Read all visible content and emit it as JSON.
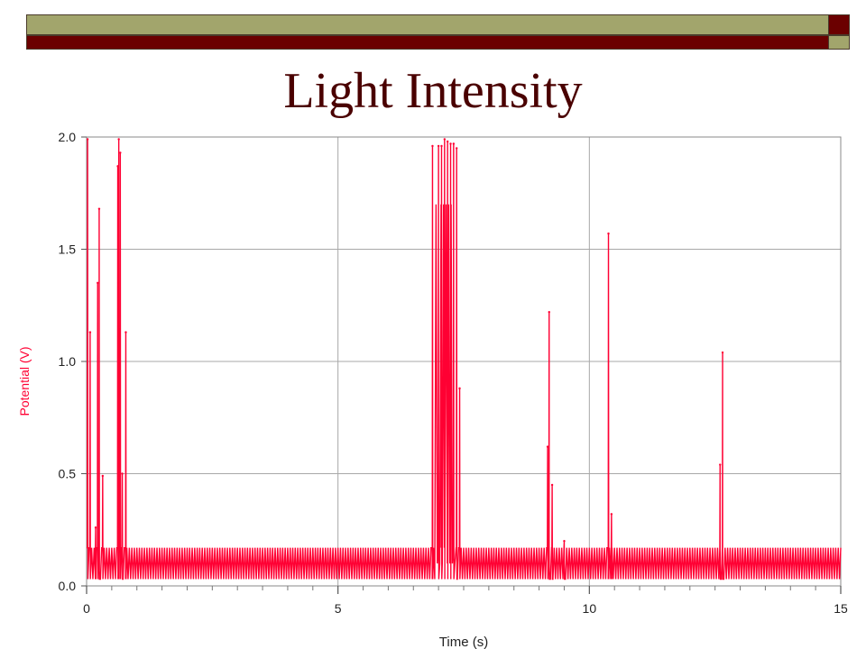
{
  "slide": {
    "title": "Light Intensity",
    "colors": {
      "olive": "#A2A56C",
      "maroon": "#6B0000",
      "title": "#4A0000",
      "series": "#FF0033",
      "grid": "#A8A8A8",
      "axis_text": "#222222"
    }
  },
  "chart_data": {
    "type": "line",
    "title": "",
    "xlabel": "Time (s)",
    "ylabel": "Potential (V)",
    "xlim": [
      0,
      15
    ],
    "ylim": [
      0.0,
      2.0
    ],
    "x_major_ticks": [
      0,
      5,
      10,
      15
    ],
    "x_minor_step": 0.5,
    "y_ticks": [
      "0.0",
      "0.5",
      "1.0",
      "1.5",
      "2.0"
    ],
    "grid": true,
    "series": [
      {
        "color": "#FF0033",
        "baseline_low": 0.03,
        "baseline_high": 0.17,
        "oscillation_period_s": 0.05,
        "spikes": [
          {
            "x": 0.02,
            "y": 1.99
          },
          {
            "x": 0.07,
            "y": 1.13
          },
          {
            "x": 0.18,
            "y": 0.26
          },
          {
            "x": 0.22,
            "y": 1.35
          },
          {
            "x": 0.25,
            "y": 1.68
          },
          {
            "x": 0.32,
            "y": 0.49
          },
          {
            "x": 0.62,
            "y": 1.87
          },
          {
            "x": 0.64,
            "y": 1.99
          },
          {
            "x": 0.67,
            "y": 1.93
          },
          {
            "x": 0.71,
            "y": 0.5
          },
          {
            "x": 0.78,
            "y": 1.13
          },
          {
            "x": 6.88,
            "y": 1.96
          },
          {
            "x": 7.0,
            "y": 1.96
          },
          {
            "x": 7.06,
            "y": 1.96
          },
          {
            "x": 7.12,
            "y": 1.99
          },
          {
            "x": 7.18,
            "y": 1.98
          },
          {
            "x": 7.24,
            "y": 1.97
          },
          {
            "x": 7.3,
            "y": 1.97
          },
          {
            "x": 7.36,
            "y": 1.95
          },
          {
            "x": 7.42,
            "y": 0.88
          },
          {
            "x": 9.17,
            "y": 0.62
          },
          {
            "x": 9.2,
            "y": 1.22
          },
          {
            "x": 9.26,
            "y": 0.45
          },
          {
            "x": 9.5,
            "y": 0.2
          },
          {
            "x": 10.38,
            "y": 1.57
          },
          {
            "x": 10.44,
            "y": 0.32
          },
          {
            "x": 12.6,
            "y": 0.54
          },
          {
            "x": 12.65,
            "y": 1.04
          }
        ],
        "dense_segments": [
          {
            "x_start": 6.95,
            "x_end": 7.35,
            "low": 0.1,
            "high": 1.7
          }
        ]
      }
    ]
  }
}
